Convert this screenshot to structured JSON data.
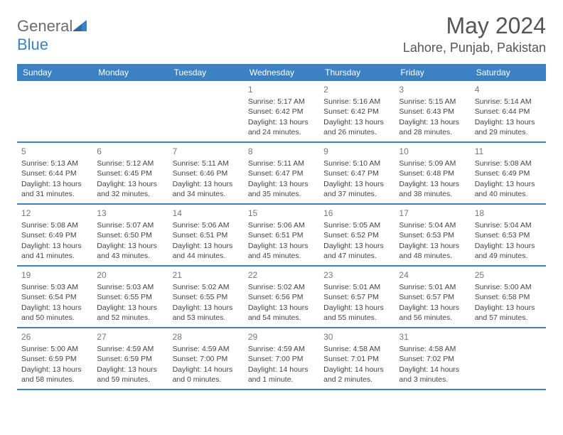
{
  "brand": {
    "part1": "General",
    "part2": "Blue"
  },
  "title": "May 2024",
  "location": "Lahore, Punjab, Pakistan",
  "colors": {
    "header_bg": "#3b82c4",
    "header_text": "#ffffff",
    "body_text": "#444444",
    "daynum_text": "#777777",
    "row_border": "#3b82c4",
    "background": "#ffffff"
  },
  "typography": {
    "title_fontsize": 32,
    "location_fontsize": 18,
    "dow_fontsize": 12,
    "cell_fontsize": 10.5,
    "daynum_fontsize": 12
  },
  "dow": [
    "Sunday",
    "Monday",
    "Tuesday",
    "Wednesday",
    "Thursday",
    "Friday",
    "Saturday"
  ],
  "weeks": [
    [
      {
        "n": "",
        "sr": "",
        "ss": "",
        "dl": ""
      },
      {
        "n": "",
        "sr": "",
        "ss": "",
        "dl": ""
      },
      {
        "n": "",
        "sr": "",
        "ss": "",
        "dl": ""
      },
      {
        "n": "1",
        "sr": "Sunrise: 5:17 AM",
        "ss": "Sunset: 6:42 PM",
        "dl": "Daylight: 13 hours and 24 minutes."
      },
      {
        "n": "2",
        "sr": "Sunrise: 5:16 AM",
        "ss": "Sunset: 6:42 PM",
        "dl": "Daylight: 13 hours and 26 minutes."
      },
      {
        "n": "3",
        "sr": "Sunrise: 5:15 AM",
        "ss": "Sunset: 6:43 PM",
        "dl": "Daylight: 13 hours and 28 minutes."
      },
      {
        "n": "4",
        "sr": "Sunrise: 5:14 AM",
        "ss": "Sunset: 6:44 PM",
        "dl": "Daylight: 13 hours and 29 minutes."
      }
    ],
    [
      {
        "n": "5",
        "sr": "Sunrise: 5:13 AM",
        "ss": "Sunset: 6:44 PM",
        "dl": "Daylight: 13 hours and 31 minutes."
      },
      {
        "n": "6",
        "sr": "Sunrise: 5:12 AM",
        "ss": "Sunset: 6:45 PM",
        "dl": "Daylight: 13 hours and 32 minutes."
      },
      {
        "n": "7",
        "sr": "Sunrise: 5:11 AM",
        "ss": "Sunset: 6:46 PM",
        "dl": "Daylight: 13 hours and 34 minutes."
      },
      {
        "n": "8",
        "sr": "Sunrise: 5:11 AM",
        "ss": "Sunset: 6:47 PM",
        "dl": "Daylight: 13 hours and 35 minutes."
      },
      {
        "n": "9",
        "sr": "Sunrise: 5:10 AM",
        "ss": "Sunset: 6:47 PM",
        "dl": "Daylight: 13 hours and 37 minutes."
      },
      {
        "n": "10",
        "sr": "Sunrise: 5:09 AM",
        "ss": "Sunset: 6:48 PM",
        "dl": "Daylight: 13 hours and 38 minutes."
      },
      {
        "n": "11",
        "sr": "Sunrise: 5:08 AM",
        "ss": "Sunset: 6:49 PM",
        "dl": "Daylight: 13 hours and 40 minutes."
      }
    ],
    [
      {
        "n": "12",
        "sr": "Sunrise: 5:08 AM",
        "ss": "Sunset: 6:49 PM",
        "dl": "Daylight: 13 hours and 41 minutes."
      },
      {
        "n": "13",
        "sr": "Sunrise: 5:07 AM",
        "ss": "Sunset: 6:50 PM",
        "dl": "Daylight: 13 hours and 43 minutes."
      },
      {
        "n": "14",
        "sr": "Sunrise: 5:06 AM",
        "ss": "Sunset: 6:51 PM",
        "dl": "Daylight: 13 hours and 44 minutes."
      },
      {
        "n": "15",
        "sr": "Sunrise: 5:06 AM",
        "ss": "Sunset: 6:51 PM",
        "dl": "Daylight: 13 hours and 45 minutes."
      },
      {
        "n": "16",
        "sr": "Sunrise: 5:05 AM",
        "ss": "Sunset: 6:52 PM",
        "dl": "Daylight: 13 hours and 47 minutes."
      },
      {
        "n": "17",
        "sr": "Sunrise: 5:04 AM",
        "ss": "Sunset: 6:53 PM",
        "dl": "Daylight: 13 hours and 48 minutes."
      },
      {
        "n": "18",
        "sr": "Sunrise: 5:04 AM",
        "ss": "Sunset: 6:53 PM",
        "dl": "Daylight: 13 hours and 49 minutes."
      }
    ],
    [
      {
        "n": "19",
        "sr": "Sunrise: 5:03 AM",
        "ss": "Sunset: 6:54 PM",
        "dl": "Daylight: 13 hours and 50 minutes."
      },
      {
        "n": "20",
        "sr": "Sunrise: 5:03 AM",
        "ss": "Sunset: 6:55 PM",
        "dl": "Daylight: 13 hours and 52 minutes."
      },
      {
        "n": "21",
        "sr": "Sunrise: 5:02 AM",
        "ss": "Sunset: 6:55 PM",
        "dl": "Daylight: 13 hours and 53 minutes."
      },
      {
        "n": "22",
        "sr": "Sunrise: 5:02 AM",
        "ss": "Sunset: 6:56 PM",
        "dl": "Daylight: 13 hours and 54 minutes."
      },
      {
        "n": "23",
        "sr": "Sunrise: 5:01 AM",
        "ss": "Sunset: 6:57 PM",
        "dl": "Daylight: 13 hours and 55 minutes."
      },
      {
        "n": "24",
        "sr": "Sunrise: 5:01 AM",
        "ss": "Sunset: 6:57 PM",
        "dl": "Daylight: 13 hours and 56 minutes."
      },
      {
        "n": "25",
        "sr": "Sunrise: 5:00 AM",
        "ss": "Sunset: 6:58 PM",
        "dl": "Daylight: 13 hours and 57 minutes."
      }
    ],
    [
      {
        "n": "26",
        "sr": "Sunrise: 5:00 AM",
        "ss": "Sunset: 6:59 PM",
        "dl": "Daylight: 13 hours and 58 minutes."
      },
      {
        "n": "27",
        "sr": "Sunrise: 4:59 AM",
        "ss": "Sunset: 6:59 PM",
        "dl": "Daylight: 13 hours and 59 minutes."
      },
      {
        "n": "28",
        "sr": "Sunrise: 4:59 AM",
        "ss": "Sunset: 7:00 PM",
        "dl": "Daylight: 14 hours and 0 minutes."
      },
      {
        "n": "29",
        "sr": "Sunrise: 4:59 AM",
        "ss": "Sunset: 7:00 PM",
        "dl": "Daylight: 14 hours and 1 minute."
      },
      {
        "n": "30",
        "sr": "Sunrise: 4:58 AM",
        "ss": "Sunset: 7:01 PM",
        "dl": "Daylight: 14 hours and 2 minutes."
      },
      {
        "n": "31",
        "sr": "Sunrise: 4:58 AM",
        "ss": "Sunset: 7:02 PM",
        "dl": "Daylight: 14 hours and 3 minutes."
      },
      {
        "n": "",
        "sr": "",
        "ss": "",
        "dl": ""
      }
    ]
  ]
}
